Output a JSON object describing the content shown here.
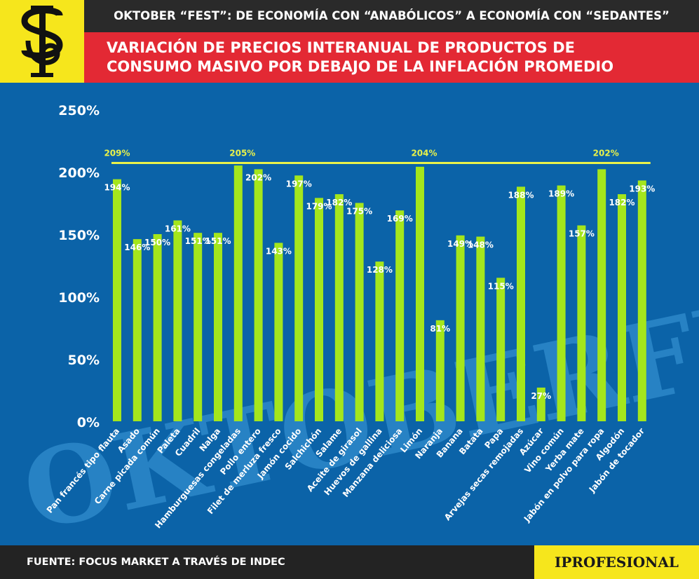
{
  "header": {
    "title": "OKTOBER “FEST”: DE ECONOMÍA CON “ANABÓLICOS” A ECONOMÍA CON “SEDANTES”",
    "subtitle_line1": "VARIACIÓN DE PRECIOS INTERANUAL DE PRODUCTOS DE",
    "subtitle_line2": "CONSUMO MASIVO POR DEBAJO DE LA INFLACIÓN PROMEDIO"
  },
  "footer": {
    "source": "FUENTE: FOCUS MARKET A TRAVÉS DE INDEC",
    "brand": "IPROFESIONAL"
  },
  "colors": {
    "background": "#0b63a8",
    "bar": "#a4e61c",
    "reference_line": "#e9f24a",
    "header_dark": "#2a2a2a",
    "band_red": "#e32934",
    "logo_yellow": "#f6e61c"
  },
  "chart_data": {
    "type": "bar",
    "categories": [
      "Pan francés tipo flauta",
      "Asado",
      "Carne picada común",
      "Paleta",
      "Cuadril",
      "Nalga",
      "Hamburguesas congeladas",
      "Pollo entero",
      "Filet de merluza fresco",
      "Jamón cocido",
      "Salchichón",
      "Salame",
      "Aceite de girasol",
      "Huevos de gallina",
      "Manzana deliciosa",
      "Limón",
      "Naranja",
      "Banana",
      "Batata",
      "Papa",
      "Arvejas secas remojadas",
      "Azúcar",
      "Vino común",
      "Yerba mate",
      "Jabón en polvo para ropa",
      "Algodón",
      "Jabón de tocador"
    ],
    "values": [
      194,
      146,
      150,
      161,
      151,
      151,
      205,
      202,
      143,
      197,
      179,
      182,
      175,
      128,
      169,
      204,
      81,
      149,
      148,
      115,
      188,
      27,
      189,
      157,
      202,
      182,
      193
    ],
    "value_labels": [
      "194%",
      "146%",
      "150%",
      "161%",
      "151%",
      "151%",
      "",
      "202%",
      "143%",
      "197%",
      "179%",
      "182%",
      "175%",
      "128%",
      "169%",
      "",
      "81%",
      "149%",
      "148%",
      "115%",
      "188%",
      "27%",
      "189%",
      "157%",
      "",
      "182%",
      "193%"
    ],
    "yticks": [
      0,
      50,
      100,
      150,
      200,
      250
    ],
    "ytick_labels": [
      "0%",
      "50%",
      "100%",
      "150%",
      "200%",
      "250%"
    ],
    "ylim": [
      0,
      250
    ],
    "reference_line": 207,
    "reference_labels": [
      {
        "text": "209%",
        "category_index": 0
      },
      {
        "text": "205%",
        "category_index": 6
      },
      {
        "text": "204%",
        "category_index": 15
      },
      {
        "text": "202%",
        "category_index": 24
      }
    ],
    "grid": false,
    "legend": "none"
  }
}
